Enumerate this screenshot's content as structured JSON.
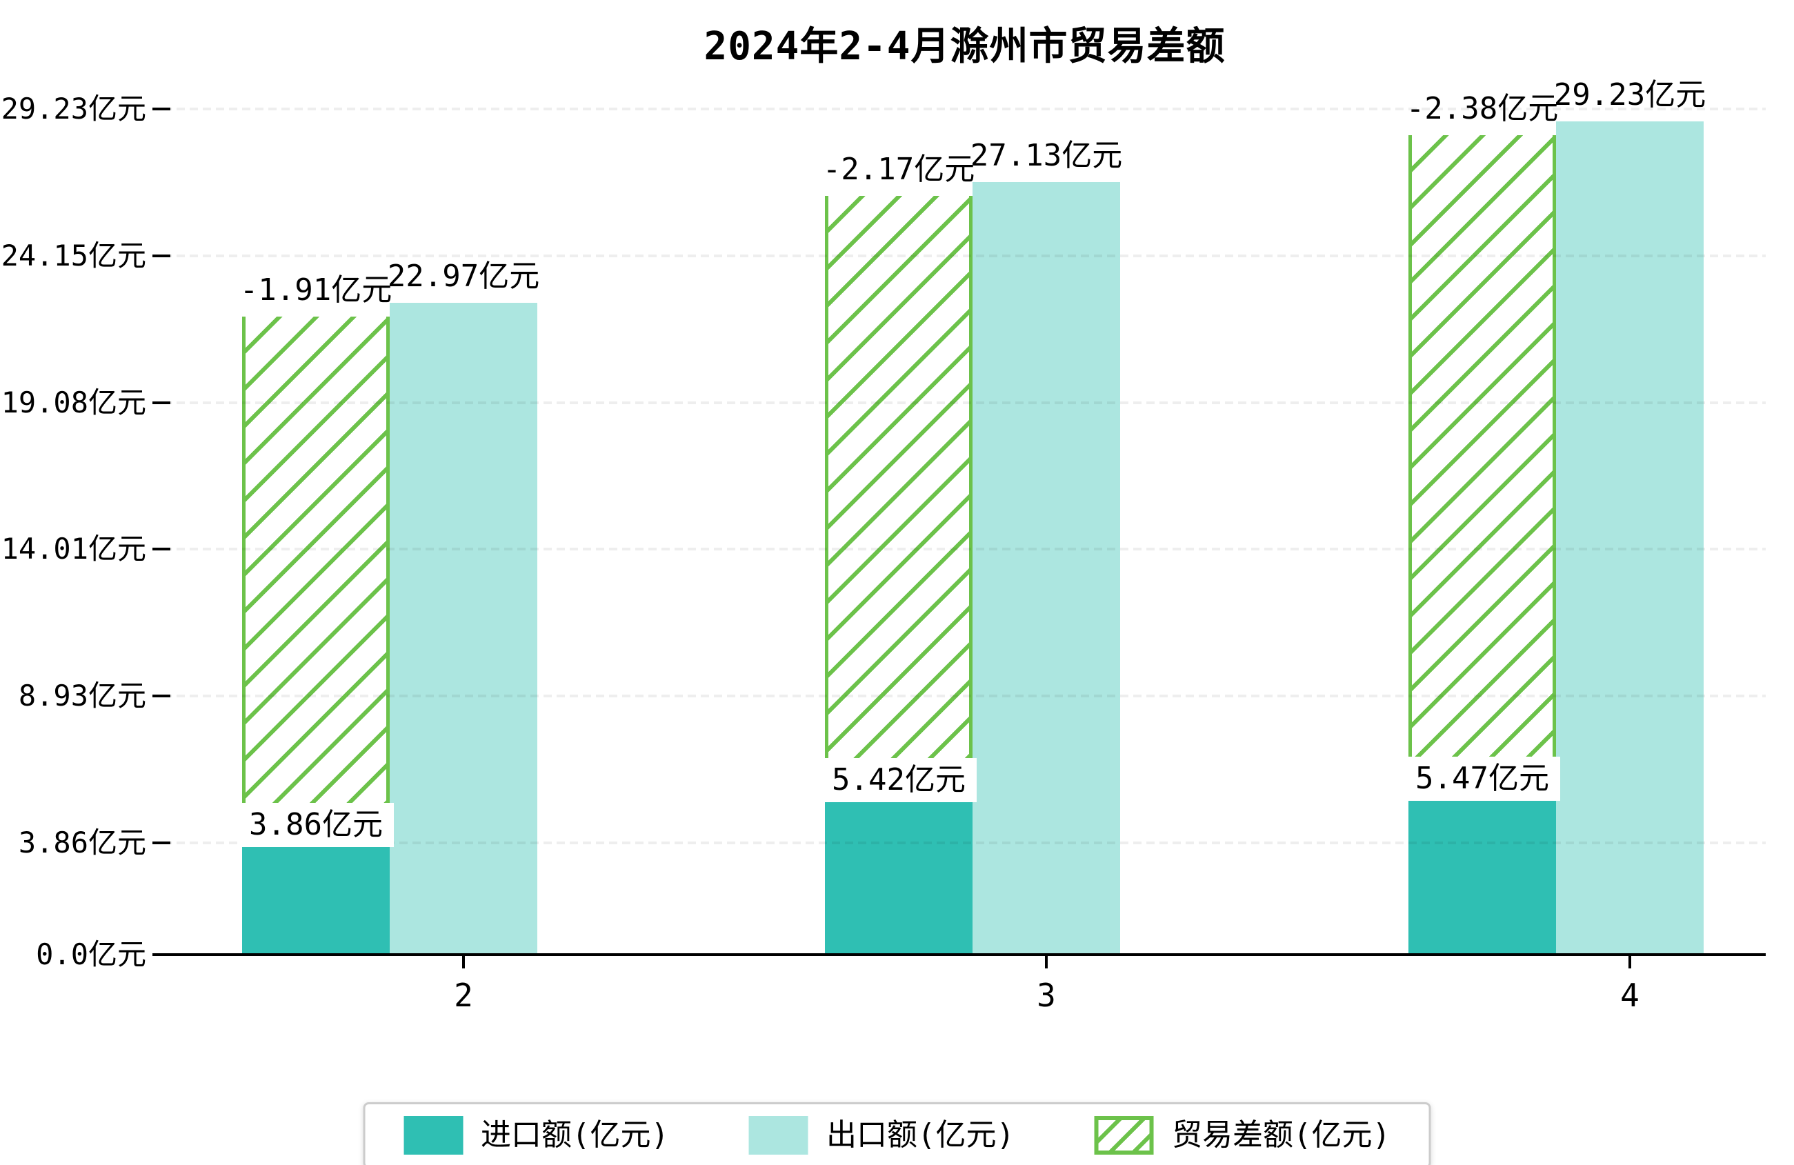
{
  "title": "2024年2-4月滁州市贸易差额",
  "unit": "亿元",
  "chart_data": {
    "type": "bar",
    "title": "2024年2-4月滁州市贸易差额",
    "categories": [
      "2",
      "3",
      "4"
    ],
    "series": [
      {
        "name": "进口额(亿元)",
        "values": [
          3.86,
          5.42,
          5.47
        ],
        "data_labels": [
          "3.86亿元",
          "5.42亿元",
          "5.47亿元"
        ],
        "color": "#2fbfb3",
        "style": "solid"
      },
      {
        "name": "出口额(亿元)",
        "values": [
          22.97,
          27.13,
          29.23
        ],
        "data_labels": [
          "22.97亿元",
          "27.13亿元",
          "29.23亿元"
        ],
        "color": "#ace6e0",
        "style": "solid"
      },
      {
        "name": "贸易差额(亿元)",
        "values": [
          -1.91,
          -2.17,
          -2.38
        ],
        "data_labels": [
          "-1.91亿元",
          "-2.17亿元",
          "-2.38亿元"
        ],
        "color": "#6cc24a",
        "style": "hatched",
        "note": "drawn stacked on top of import bar, hatched white bar reaching just below export top"
      }
    ],
    "y_axis": {
      "tick_labels": [
        "0.0亿元",
        "3.86亿元",
        "8.93亿元",
        "14.01亿元",
        "19.08亿元",
        "24.15亿元",
        "29.23亿元"
      ],
      "tick_values": [
        0,
        3.86,
        8.93,
        14.01,
        19.08,
        24.15,
        29.23
      ],
      "ylim": [
        0,
        29.23
      ]
    },
    "x_axis": {
      "tick_labels": [
        "2",
        "3",
        "4"
      ]
    },
    "grid": "horizontal dashed light-gray, drawn above bars",
    "legend_position": "bottom-center"
  },
  "legend": {
    "items": [
      {
        "label": "进口额(亿元)",
        "swatch": "solid-teal"
      },
      {
        "label": "出口额(亿元)",
        "swatch": "solid-light-teal"
      },
      {
        "label": "贸易差额(亿元)",
        "swatch": "green-hatched"
      }
    ]
  },
  "colors": {
    "import": "#2fbfb3",
    "export": "#ace6e0",
    "trade_balance": "#6cc24a",
    "axis": "#000000",
    "gridline": "rgba(0,0,0,0.065)",
    "background": "#ffffff"
  }
}
